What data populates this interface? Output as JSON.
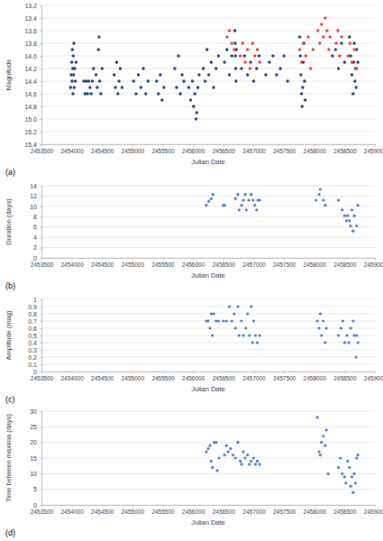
{
  "chart_data": [
    {
      "type": "scatter",
      "x_label": "Julian Date",
      "y_label": "Magnitude",
      "annotation": "(a)",
      "grid": true,
      "xlim": [
        2453500,
        2459000
      ],
      "xticks": [
        2453500,
        2454000,
        2454500,
        2455000,
        2455500,
        2456000,
        2456500,
        2457000,
        2457500,
        2458000,
        2458500,
        2459000
      ],
      "ylim": [
        15.4,
        13.2
      ],
      "yticks": [
        13.2,
        13.4,
        13.6,
        13.8,
        {
          "value": 14,
          "label": "14.0"
        },
        14.2,
        14.4,
        14.6,
        14.8,
        {
          "value": 15,
          "label": "15.0"
        },
        15.2,
        15.4
      ],
      "series": [
        {
          "color": "#1f3a6e",
          "marker": "circle",
          "x": [
            2453980,
            2453990,
            2454000,
            2454005,
            2454010,
            2454015,
            2454020,
            2454025,
            2454030,
            2454035,
            2454040,
            2454050,
            2454060,
            2454070,
            2454200,
            2454220,
            2454240,
            2454260,
            2454280,
            2454300,
            2454320,
            2454340,
            2454360,
            2454400,
            2454420,
            2454440,
            2454450,
            2454460,
            2454480,
            2454500,
            2454700,
            2454720,
            2454740,
            2454760,
            2454780,
            2454800,
            2454830,
            2455020,
            2455060,
            2455100,
            2455140,
            2455180,
            2455220,
            2455260,
            2455400,
            2455430,
            2455460,
            2455490,
            2455520,
            2455700,
            2455730,
            2455760,
            2455790,
            2455820,
            2455850,
            2455930,
            2455960,
            2455990,
            2456010,
            2456030,
            2456050,
            2456060,
            2456080,
            2456100,
            2456170,
            2456200,
            2456230,
            2456260,
            2456300,
            2456340,
            2456380,
            2456420,
            2456520,
            2456560,
            2456600,
            2456640,
            2456690,
            2456695,
            2456700,
            2456705,
            2456710,
            2456715,
            2456800,
            2456850,
            2456900,
            2456950,
            2457000,
            2457050,
            2457090,
            2457200,
            2457260,
            2457320,
            2457380,
            2457440,
            2457500,
            2457560,
            2457760,
            2457770,
            2457780,
            2457790,
            2457800,
            2457810,
            2457820,
            2457830,
            2457840,
            2457850,
            2458300,
            2458350,
            2458400,
            2458450,
            2458500,
            2458580,
            2458600,
            2458620,
            2458640,
            2458650,
            2458660,
            2458670,
            2458680,
            2458690,
            2458700,
            2458720
          ],
          "values": [
            14.5,
            14.3,
            14.1,
            14.4,
            13.9,
            14.2,
            14.6,
            14.0,
            14.3,
            13.8,
            14.5,
            14.2,
            14.4,
            14.1,
            14.4,
            14.6,
            14.4,
            14.6,
            14.4,
            14.5,
            14.6,
            14.4,
            14.2,
            14.3,
            14.5,
            13.9,
            13.7,
            14.4,
            14.6,
            14.2,
            14.3,
            14.5,
            14.1,
            14.6,
            14.4,
            14.2,
            14.5,
            14.4,
            14.6,
            14.3,
            14.5,
            14.2,
            14.6,
            14.4,
            14.4,
            14.6,
            14.3,
            14.7,
            14.5,
            14.2,
            14.5,
            14.0,
            14.6,
            14.3,
            14.4,
            14.5,
            14.7,
            14.4,
            14.8,
            14.6,
            15.0,
            14.9,
            14.5,
            14.3,
            14.2,
            14.4,
            13.9,
            14.3,
            14.1,
            14.5,
            14.2,
            14.0,
            14.1,
            13.9,
            14.3,
            14.0,
            13.6,
            13.8,
            14.0,
            14.2,
            14.4,
            13.9,
            14.2,
            14.0,
            14.3,
            14.1,
            14.4,
            14.2,
            14.0,
            14.3,
            14.1,
            14.0,
            14.3,
            14.2,
            14.0,
            14.4,
            13.7,
            14.0,
            14.3,
            14.6,
            14.8,
            14.5,
            14.1,
            13.8,
            14.4,
            14.7,
            14.0,
            13.9,
            14.2,
            13.8,
            14.1,
            13.7,
            14.0,
            14.3,
            14.6,
            14.1,
            13.8,
            14.4,
            14.2,
            14.5,
            13.9,
            14.1
          ]
        },
        {
          "color": "#e8393a",
          "marker": "circle",
          "x": [
            2456560,
            2456600,
            2456640,
            2456680,
            2456780,
            2456820,
            2456860,
            2456900,
            2456940,
            2456980,
            2457020,
            2457060,
            2457100,
            2457760,
            2457790,
            2457820,
            2457860,
            2457900,
            2457940,
            2457980,
            2458060,
            2458090,
            2458120,
            2458150,
            2458180,
            2458210,
            2458240,
            2458260,
            2458360,
            2458390,
            2458420,
            2458450,
            2458560,
            2458590,
            2458620,
            2458660,
            2458700
          ],
          "values": [
            13.7,
            13.6,
            13.8,
            13.9,
            14.0,
            13.8,
            14.1,
            13.9,
            14.2,
            13.8,
            14.0,
            13.9,
            14.1,
            13.9,
            14.1,
            13.8,
            14.0,
            13.7,
            14.2,
            13.9,
            13.6,
            13.8,
            13.5,
            13.7,
            13.4,
            13.6,
            13.9,
            13.7,
            13.8,
            13.6,
            14.0,
            13.7,
            14.0,
            13.8,
            14.1,
            13.9,
            14.2
          ]
        }
      ]
    },
    {
      "type": "scatter",
      "x_label": "Julian Date",
      "y_label": "Duration (days)",
      "annotation": "(b)",
      "grid": true,
      "xlim": [
        2453500,
        2459000
      ],
      "xticks": [
        2453500,
        2454000,
        2454500,
        2455000,
        2455500,
        2456000,
        2456500,
        2457000,
        2457500,
        2458000,
        2458500,
        2459000
      ],
      "ylim": [
        0,
        14
      ],
      "yticks": [
        0,
        2,
        4,
        6,
        8,
        10,
        12,
        14
      ],
      "series": [
        {
          "color": "#4a78c2",
          "marker": "circle",
          "x": [
            2456220,
            2456260,
            2456300,
            2456330,
            2456500,
            2456520,
            2456700,
            2456740,
            2456760,
            2456800,
            2456830,
            2456860,
            2456880,
            2456920,
            2456960,
            2456990,
            2457020,
            2457050,
            2457070,
            2457100,
            2458030,
            2458080,
            2458100,
            2458150,
            2458180,
            2458400,
            2458460,
            2458500,
            2458530,
            2458550,
            2458580,
            2458600,
            2458620,
            2458640,
            2458660,
            2458700,
            2458720
          ],
          "values": [
            10.2,
            11.0,
            11.5,
            12.3,
            10.2,
            10.2,
            11.5,
            12.3,
            9.3,
            10.2,
            11.2,
            12.3,
            9.3,
            11.2,
            12.3,
            11.2,
            10.2,
            9.3,
            11.2,
            11.2,
            11.2,
            12.3,
            13.3,
            11.2,
            10.2,
            11.2,
            9.3,
            8.2,
            7.2,
            8.2,
            7.2,
            6.2,
            9.3,
            5.2,
            8.2,
            6.2,
            10.2
          ]
        }
      ]
    },
    {
      "type": "scatter",
      "x_label": "Julian Date",
      "y_label": "Amplitude (mag)",
      "annotation": "(c)",
      "grid": true,
      "xlim": [
        2453500,
        2459000
      ],
      "xticks": [
        2453500,
        2454000,
        2454500,
        2455000,
        2455500,
        2456000,
        2456500,
        2457000,
        2457500,
        2458000,
        2458500,
        2459000
      ],
      "ylim": [
        0,
        1
      ],
      "yticks": [
        0,
        0.1,
        0.2,
        0.3,
        0.4,
        0.5,
        0.6,
        0.7,
        0.8,
        0.9,
        1
      ],
      "series": [
        {
          "color": "#4a78c2",
          "marker": "circle",
          "x": [
            2456220,
            2456250,
            2456280,
            2456300,
            2456320,
            2456340,
            2456380,
            2456420,
            2456500,
            2456550,
            2456600,
            2456640,
            2456680,
            2456700,
            2456740,
            2456760,
            2456800,
            2456830,
            2456870,
            2456900,
            2456930,
            2456960,
            2456980,
            2457000,
            2457030,
            2457060,
            2457100,
            2458050,
            2458080,
            2458100,
            2458120,
            2458150,
            2458180,
            2458200,
            2458400,
            2458440,
            2458470,
            2458500,
            2458540,
            2458570,
            2458600,
            2458640,
            2458660,
            2458690,
            2458700,
            2458720
          ],
          "values": [
            0.7,
            0.7,
            0.6,
            0.8,
            0.5,
            0.8,
            0.7,
            0.7,
            0.7,
            0.7,
            0.9,
            0.7,
            0.8,
            0.6,
            0.9,
            0.5,
            0.7,
            0.5,
            0.6,
            0.8,
            0.5,
            0.9,
            0.4,
            0.7,
            0.5,
            0.4,
            0.5,
            0.7,
            0.6,
            0.8,
            0.5,
            0.7,
            0.4,
            0.6,
            0.5,
            0.6,
            0.7,
            0.4,
            0.5,
            0.4,
            0.6,
            0.7,
            0.5,
            0.2,
            0.5,
            0.4
          ]
        }
      ]
    },
    {
      "type": "scatter",
      "x_label": "Julian Date",
      "y_label": "Time between maxima (days)",
      "annotation": "(d)",
      "grid": true,
      "xlim": [
        2453500,
        2459000
      ],
      "xticks": [
        2453500,
        2454000,
        2454500,
        2455000,
        2455500,
        2456000,
        2456500,
        2457000,
        2457500,
        2458000,
        2458500,
        2459000
      ],
      "ylim": [
        0,
        30
      ],
      "yticks": [
        0,
        5,
        10,
        15,
        20,
        25,
        30
      ],
      "series": [
        {
          "color": "#4a78c2",
          "marker": "circle",
          "x": [
            2456220,
            2456250,
            2456280,
            2456300,
            2456320,
            2456350,
            2456380,
            2456400,
            2456430,
            2456520,
            2456550,
            2456580,
            2456620,
            2456660,
            2456700,
            2456740,
            2456780,
            2456800,
            2456830,
            2456860,
            2456900,
            2456930,
            2456960,
            2457000,
            2457030,
            2457060,
            2457100,
            2458050,
            2458080,
            2458100,
            2458120,
            2458150,
            2458180,
            2458200,
            2458230,
            2458400,
            2458430,
            2458460,
            2458500,
            2458520,
            2458550,
            2458580,
            2458600,
            2458620,
            2458640,
            2458660,
            2458680,
            2458700,
            2458720
          ],
          "values": [
            17,
            18,
            19,
            14,
            12,
            20,
            20,
            11,
            15,
            16,
            19,
            17,
            18,
            16,
            15,
            20,
            14,
            13,
            17,
            15,
            16,
            13,
            14,
            15,
            13,
            14,
            13,
            28,
            17,
            16,
            20,
            22,
            19,
            24,
            10,
            12,
            15,
            10,
            9,
            7,
            14,
            12,
            6,
            9,
            4,
            10,
            7,
            15,
            16
          ]
        }
      ]
    }
  ]
}
